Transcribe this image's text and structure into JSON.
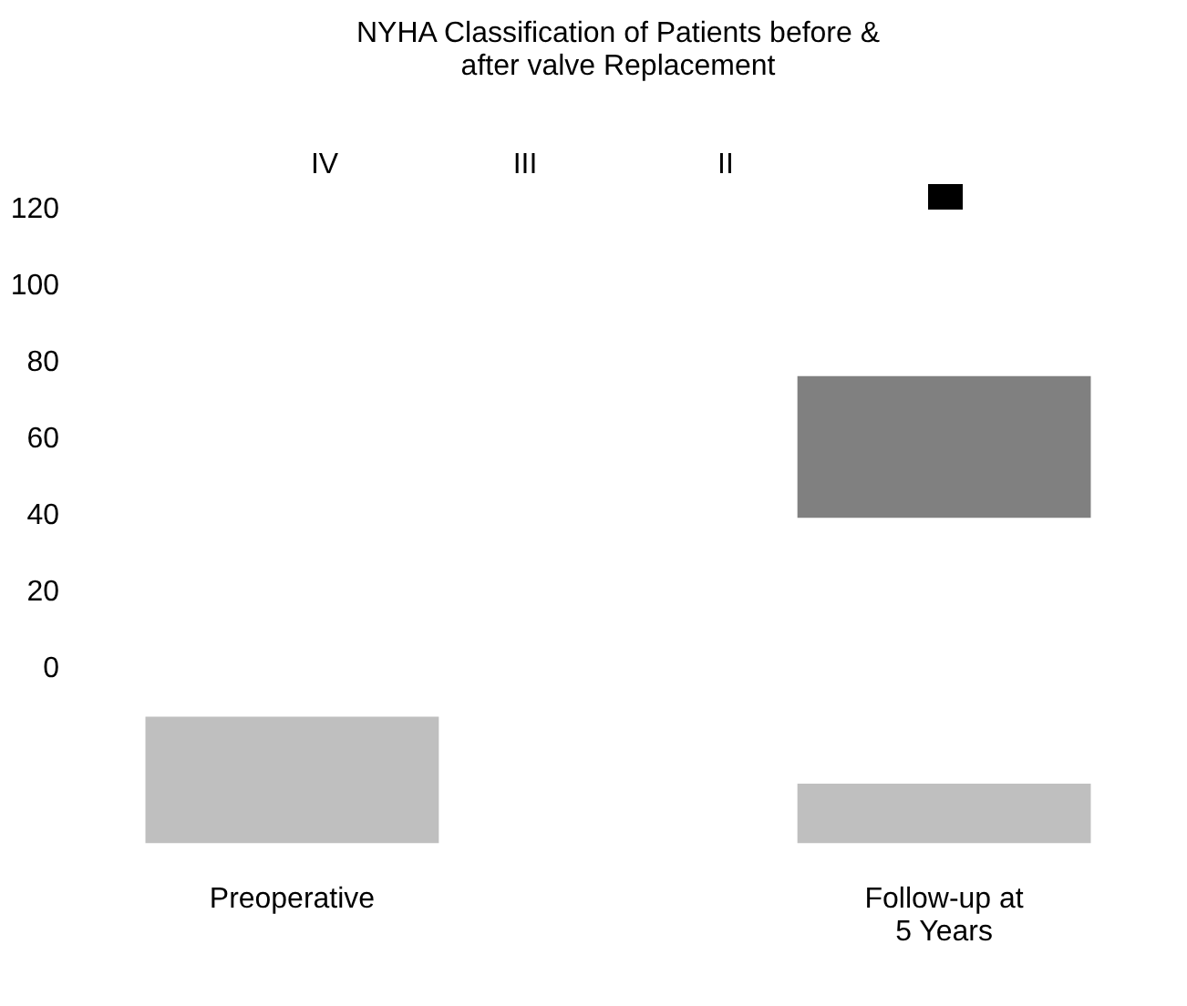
{
  "chart_data": {
    "type": "bar",
    "title": "NYHA Classification of Patients before & after valve Replacement",
    "categories": [
      "Preoperative",
      "Follow-up at 5 Years"
    ],
    "series": [
      {
        "color": "#bfbfbf",
        "base": [
          -46,
          -46
        ],
        "values": [
          33,
          15.5
        ]
      },
      {
        "color": "#808080",
        "base": [
          null,
          39
        ],
        "values": [
          null,
          37
        ]
      }
    ],
    "ylim": [
      -46,
      120
    ],
    "yticks": [
      0,
      20,
      40,
      60,
      80,
      100,
      120
    ],
    "annotations": [
      "IV",
      "III",
      "II"
    ],
    "grid": false
  }
}
